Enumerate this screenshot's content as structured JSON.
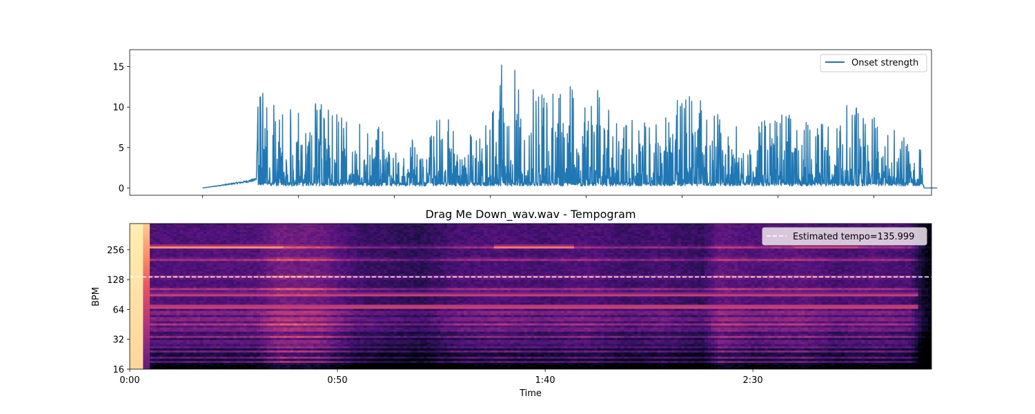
{
  "chart_data": [
    {
      "type": "line",
      "title": "",
      "xlabel": "",
      "ylabel": "",
      "xlim": [
        -19,
        190
      ],
      "ylim": [
        -0.9,
        17.1
      ],
      "yticks": [
        0,
        5,
        10,
        15
      ],
      "ytick_labels": [
        "0",
        "5",
        "10",
        "15"
      ],
      "xticks": [
        0,
        25,
        50,
        75,
        100,
        125,
        150,
        175
      ],
      "legend": {
        "position": "top-right",
        "entries": [
          "Onset strength"
        ]
      },
      "series": [
        {
          "name": "Onset strength",
          "color": "#1f77b4",
          "x_range": [
            0,
            191.5
          ],
          "envelope_points": [
            [
              0,
              0.0
            ],
            [
              5,
              0.4
            ],
            [
              10,
              0.8
            ],
            [
              13,
              1.1
            ],
            [
              14,
              1.3
            ],
            [
              14.5,
              13.5
            ],
            [
              20,
              10.3
            ],
            [
              25,
              9.5
            ],
            [
              30,
              12.0
            ],
            [
              35,
              9.3
            ],
            [
              40,
              9.0
            ],
            [
              45,
              7.8
            ],
            [
              50,
              6.7
            ],
            [
              55,
              6.3
            ],
            [
              58,
              6.5
            ],
            [
              60,
              7.0
            ],
            [
              62,
              11.3
            ],
            [
              66,
              7.0
            ],
            [
              70,
              7.5
            ],
            [
              75,
              8.5
            ],
            [
              78,
              16.5
            ],
            [
              82,
              14.8
            ],
            [
              86,
              12.3
            ],
            [
              90,
              12.2
            ],
            [
              95,
              12.5
            ],
            [
              100,
              13.2
            ],
            [
              105,
              11.6
            ],
            [
              110,
              9.4
            ],
            [
              115,
              9.2
            ],
            [
              120,
              8.5
            ],
            [
              126,
              12.8
            ],
            [
              130,
              11.0
            ],
            [
              135,
              9.0
            ],
            [
              140,
              7.5
            ],
            [
              145,
              8.2
            ],
            [
              150,
              10.0
            ],
            [
              155,
              8.5
            ],
            [
              160,
              7.7
            ],
            [
              165,
              8.8
            ],
            [
              170,
              11.5
            ],
            [
              175,
              9.0
            ],
            [
              180,
              7.6
            ],
            [
              183,
              7.5
            ],
            [
              185,
              2.2
            ],
            [
              187,
              5.6
            ],
            [
              188,
              0.4
            ],
            [
              191.5,
              0.0
            ]
          ]
        }
      ]
    },
    {
      "type": "heatmap",
      "title": "Drag Me Down_wav.wav - Tempogram",
      "xlabel": "Time",
      "ylabel": "BPM",
      "colormap": "magma",
      "y_scale": "log2",
      "xlim": [
        0,
        193
      ],
      "ylim": [
        16,
        470
      ],
      "xticks": [
        0,
        50,
        100,
        150
      ],
      "xtick_labels": [
        "0:00",
        "0:50",
        "1:40",
        "2:30"
      ],
      "yticks": [
        16,
        32,
        64,
        128,
        256
      ],
      "ytick_labels": [
        "16",
        "32",
        "64",
        "128",
        "256"
      ],
      "tempo_line": {
        "value": 135.999,
        "label": "Estimated tempo=135.999",
        "color": "#ffffff",
        "style": "dashed"
      },
      "legend": {
        "position": "top-right",
        "entries": [
          "Estimated tempo=135.999"
        ]
      },
      "band_bpms": [
        272,
        204,
        136,
        102,
        90,
        68,
        59,
        51,
        45,
        40,
        34,
        30,
        27,
        24,
        21,
        19
      ],
      "bright_segments": [
        {
          "bpm": 272,
          "x": [
            5,
            37
          ],
          "level": 0.85
        },
        {
          "bpm": 272,
          "x": [
            88,
            107
          ],
          "level": 0.8
        },
        {
          "bpm": 272,
          "x": [
            160,
            175
          ],
          "level": 0.65
        },
        {
          "bpm": 68,
          "x": [
            5,
            190
          ],
          "level": 0.75
        },
        {
          "bpm": 90,
          "x": [
            5,
            190
          ],
          "level": 0.65
        }
      ],
      "intensity_profile": [
        [
          0,
          1.0
        ],
        [
          3,
          1.0
        ],
        [
          4,
          0.7
        ],
        [
          5,
          0.55
        ],
        [
          30,
          0.55
        ],
        [
          36,
          0.75
        ],
        [
          46,
          0.7
        ],
        [
          55,
          0.45
        ],
        [
          65,
          0.4
        ],
        [
          70,
          0.35
        ],
        [
          78,
          0.5
        ],
        [
          88,
          0.55
        ],
        [
          100,
          0.5
        ],
        [
          110,
          0.55
        ],
        [
          120,
          0.45
        ],
        [
          128,
          0.5
        ],
        [
          138,
          0.4
        ],
        [
          142,
          0.65
        ],
        [
          150,
          0.55
        ],
        [
          162,
          0.6
        ],
        [
          170,
          0.5
        ],
        [
          180,
          0.55
        ],
        [
          188,
          0.5
        ],
        [
          191,
          0.15
        ],
        [
          193,
          0.05
        ]
      ]
    }
  ]
}
